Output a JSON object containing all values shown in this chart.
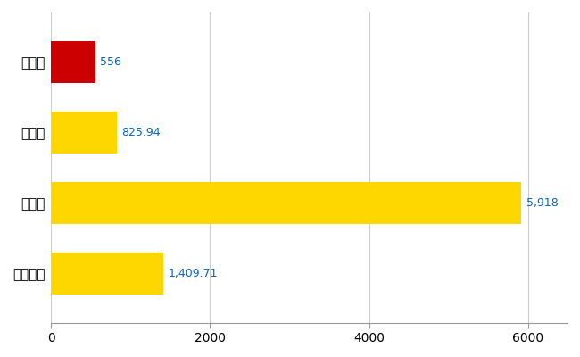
{
  "categories": [
    "釜石市",
    "県平均",
    "県最大",
    "全国平均"
  ],
  "values": [
    556,
    825.94,
    5918,
    1409.71
  ],
  "colors": [
    "#CC0000",
    "#FFD700",
    "#FFD700",
    "#FFD700"
  ],
  "value_labels": [
    "556",
    "825.94",
    "5,918",
    "1,409.71"
  ],
  "xlim": [
    0,
    6500
  ],
  "xticks": [
    0,
    2000,
    4000,
    6000
  ],
  "background_color": "#FFFFFF",
  "grid_color": "#CCCCCC",
  "label_color": "#0066CC",
  "bar_height": 0.6,
  "figsize": [
    6.5,
    4.0
  ],
  "dpi": 100
}
